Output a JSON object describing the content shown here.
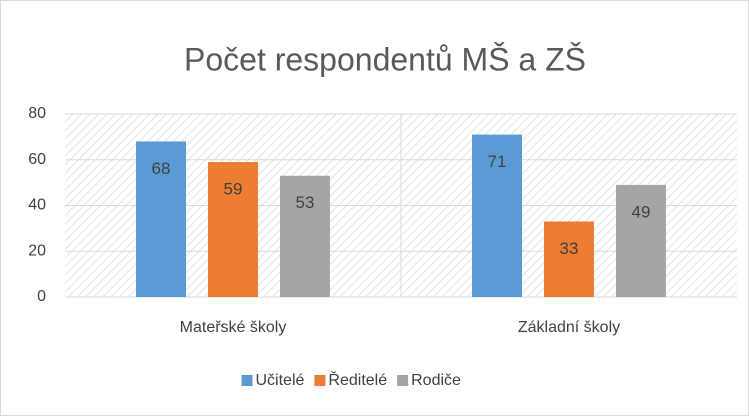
{
  "chart_data": {
    "type": "bar",
    "title": "Počet respondentů MŠ a ZŠ",
    "categories": [
      "Mateřské školy",
      "Základní školy"
    ],
    "series": [
      {
        "name": "Učitelé",
        "color": "#5b9bd5",
        "values": [
          68,
          71
        ]
      },
      {
        "name": "Ředitelé",
        "color": "#ed7d31",
        "values": [
          59,
          33
        ]
      },
      {
        "name": "Rodiče",
        "color": "#a5a5a5",
        "values": [
          53,
          49
        ]
      }
    ],
    "ylim": [
      0,
      80
    ],
    "yticks": [
      0,
      20,
      40,
      60,
      80
    ],
    "grid": true,
    "legend": "bottom"
  }
}
